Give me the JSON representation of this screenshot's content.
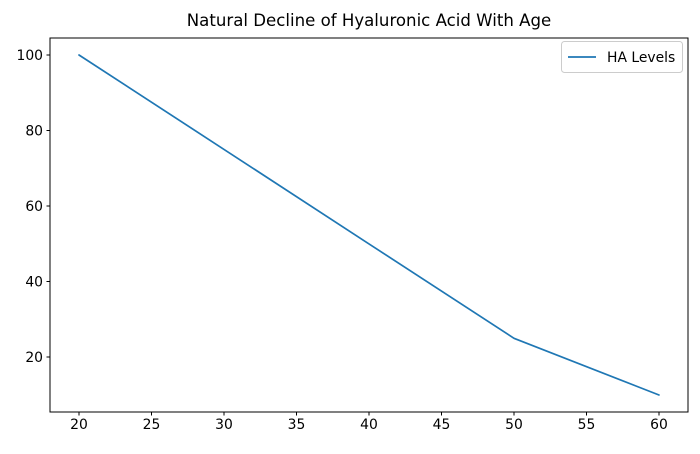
{
  "chart_data": {
    "type": "line",
    "title": "Natural Decline of Hyaluronic Acid With Age",
    "xlabel": "",
    "ylabel": "",
    "x": [
      20,
      30,
      40,
      50,
      60
    ],
    "series": [
      {
        "name": "HA Levels",
        "values": [
          100,
          75,
          50,
          25,
          10
        ],
        "color": "#1f77b4"
      }
    ],
    "xticks": [
      20,
      25,
      30,
      35,
      40,
      45,
      50,
      55,
      60
    ],
    "yticks": [
      20,
      40,
      60,
      80,
      100
    ],
    "xlim": [
      18,
      62
    ],
    "ylim": [
      5.5,
      104.5
    ],
    "grid": false,
    "legend_position": "upper right",
    "legend_title": ""
  },
  "colors": {
    "line": "#1f77b4",
    "text": "#000000",
    "spine": "#000000",
    "legend_border": "#cccccc",
    "background": "#ffffff"
  }
}
